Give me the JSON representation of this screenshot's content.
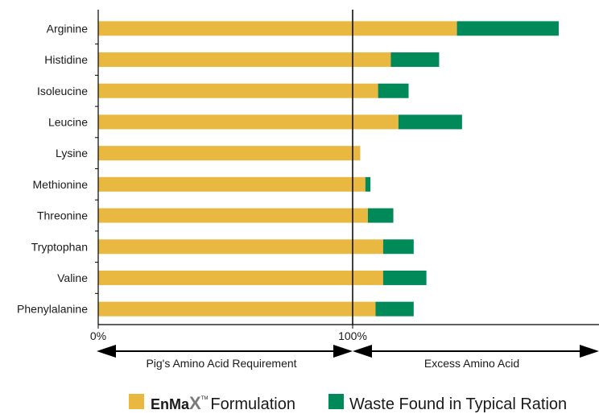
{
  "chart_data": {
    "type": "bar",
    "orientation": "horizontal",
    "stacked": true,
    "categories": [
      "Arginine",
      "Histidine",
      "Isoleucine",
      "Leucine",
      "Lysine",
      "Methionine",
      "Threonine",
      "Tryptophan",
      "Valine",
      "Phenylalanine"
    ],
    "series": [
      {
        "name": "EnMax Formulation",
        "color": "#e8b840",
        "values": [
          141,
          115,
          110,
          118,
          103,
          105,
          106,
          112,
          112,
          109
        ]
      },
      {
        "name": "Waste Found in Typical Ration",
        "color": "#008a5a",
        "values": [
          40,
          19,
          12,
          25,
          0,
          2,
          10,
          12,
          17,
          15
        ]
      }
    ],
    "xlim": [
      0,
      196
    ],
    "x_ticks": [
      {
        "value": 0,
        "label": "0%"
      },
      {
        "value": 100,
        "label": "100%"
      }
    ],
    "grid": false,
    "legend_position": "bottom",
    "annotations": {
      "left_span": "Pig's Amino Acid Requirement",
      "right_span": "Excess Amino Acid"
    }
  },
  "legend": {
    "brand_name": "EnMa",
    "brand_x": "X",
    "trademark": "TM",
    "item1_suffix": "Formulation",
    "item2_label": "Waste Found in Typical Ration"
  }
}
